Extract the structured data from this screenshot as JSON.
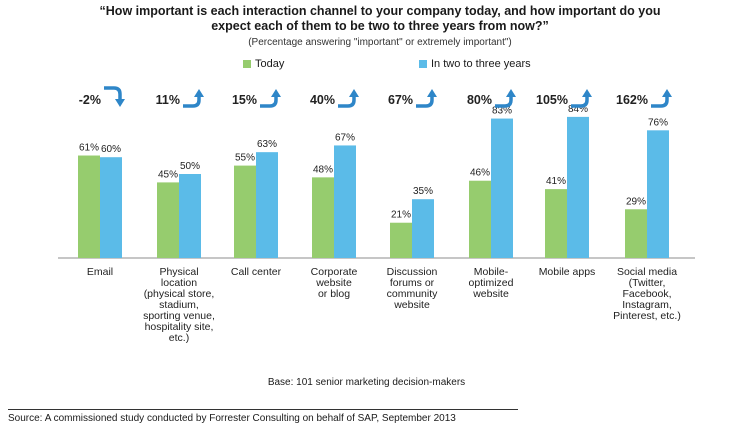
{
  "chart_data": {
    "type": "bar",
    "title": "“How important is each interaction channel to your company today, and how important do you expect each of them to be two to three years from now?”",
    "subtitle": "(Percentage answering \"important\" or extremely important\")",
    "categories": [
      [
        "Email"
      ],
      [
        "Physical",
        "location",
        "(physical store,",
        "stadium,",
        "sporting venue,",
        "hospitality site,",
        "etc.)"
      ],
      [
        "Call center"
      ],
      [
        "Corporate",
        "website",
        "or blog"
      ],
      [
        "Discussion",
        "forums or",
        "community",
        "website"
      ],
      [
        "Mobile-",
        "optimized",
        "website"
      ],
      [
        "Mobile apps"
      ],
      [
        "Social media",
        "(Twitter,",
        "Facebook,",
        "Instagram,",
        "Pinterest, etc.)"
      ]
    ],
    "series": [
      {
        "name": "Today",
        "color": "#96cc6e",
        "values": [
          61,
          45,
          55,
          48,
          21,
          46,
          41,
          29
        ]
      },
      {
        "name": "In two to three years",
        "color": "#5bbbe8",
        "values": [
          60,
          50,
          63,
          67,
          35,
          83,
          84,
          76
        ]
      }
    ],
    "changes": [
      "-2%",
      "11%",
      "15%",
      "40%",
      "67%",
      "80%",
      "105%",
      "162%"
    ],
    "change_direction": [
      "down",
      "up",
      "up",
      "up",
      "up",
      "up",
      "up",
      "up"
    ],
    "ylim": [
      0,
      100
    ],
    "grid": false,
    "legend_position": "top-center",
    "arrow_color": "#2e86c8"
  },
  "footer": {
    "base": "Base: 101 senior marketing decision-makers",
    "source": "Source: A commissioned study conducted by Forrester Consulting on behalf of SAP, September 2013"
  }
}
